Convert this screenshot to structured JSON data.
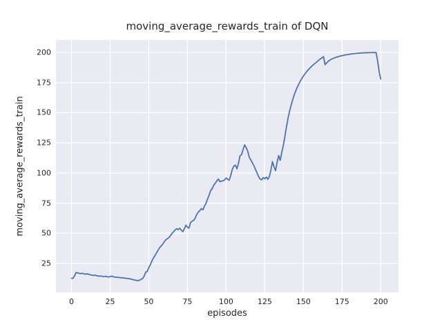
{
  "chart_data": {
    "type": "line",
    "title": "moving_average_rewards_train of DQN",
    "xlabel": "episodes",
    "ylabel": "moving_average_rewards_train",
    "x_ticks": [
      0,
      25,
      50,
      75,
      100,
      125,
      150,
      175,
      200
    ],
    "y_ticks": [
      25,
      50,
      75,
      100,
      125,
      150,
      175,
      200
    ],
    "xlim": [
      -10.05,
      211.5
    ],
    "ylim": [
      1,
      210.3
    ],
    "grid": true,
    "legend": "none",
    "colors": {
      "line": "#4c72b0",
      "plot_background": "#eaeaf2",
      "gridline": "#ffffff",
      "text": "#262626"
    },
    "series": [
      {
        "name": "moving_average_rewards_train",
        "x_start": 0,
        "x_step": 1,
        "values": [
          12.7,
          12.7,
          14.8,
          17.5,
          17.2,
          16.8,
          16.5,
          16.9,
          16.4,
          16.1,
          16.5,
          16.0,
          15.7,
          15.3,
          15.0,
          15.4,
          14.9,
          14.7,
          14.4,
          14.6,
          14.3,
          14.1,
          14.4,
          14.0,
          13.8,
          14.1,
          14.5,
          14.0,
          13.7,
          13.5,
          13.6,
          13.3,
          13.1,
          13.2,
          12.9,
          12.7,
          12.6,
          12.4,
          12.2,
          11.8,
          11.5,
          11.2,
          10.9,
          10.8,
          11.0,
          11.8,
          12.5,
          14.5,
          17.8,
          18.3,
          21.5,
          24.0,
          27.0,
          29.5,
          31.5,
          33.7,
          36.0,
          38.0,
          39.5,
          41.0,
          43.0,
          44.6,
          45.5,
          46.5,
          48.0,
          49.8,
          51.2,
          52.8,
          53.8,
          53.0,
          54.2,
          52.8,
          51.3,
          53.8,
          56.8,
          55.0,
          54.3,
          58.9,
          60.0,
          60.8,
          62.5,
          65.6,
          67.5,
          68.8,
          70.5,
          69.5,
          72.5,
          74.8,
          78.5,
          81.5,
          85.5,
          87.0,
          89.9,
          91.5,
          93.5,
          95.0,
          92.8,
          93.2,
          93.6,
          94.2,
          95.9,
          94.8,
          94.0,
          98.0,
          103.0,
          105.7,
          106.5,
          103.5,
          108.0,
          114.3,
          115.2,
          119.5,
          123.3,
          121.0,
          118.0,
          113.0,
          110.8,
          108.5,
          106.0,
          103.0,
          100.0,
          97.0,
          95.0,
          94.3,
          96.2,
          95.3,
          96.6,
          94.8,
          97.1,
          102.5,
          109.5,
          105.0,
          102.0,
          109.0,
          114.5,
          110.5,
          117.0,
          123.0,
          130.0,
          138.0,
          145.0,
          151.0,
          156.0,
          160.5,
          164.5,
          168.0,
          171.0,
          173.7,
          176.2,
          178.4,
          180.4,
          182.2,
          183.9,
          185.4,
          186.8,
          188.1,
          189.3,
          190.4,
          191.4,
          192.5,
          193.6,
          194.6,
          195.5,
          196.5,
          189.8,
          191.3,
          192.6,
          193.5,
          194.3,
          194.9,
          195.4,
          195.9,
          196.3,
          196.7,
          197.0,
          197.3,
          197.6,
          197.9,
          198.1,
          198.3,
          198.5,
          198.7,
          198.9,
          199.0,
          199.2,
          199.3,
          199.4,
          199.5,
          199.6,
          199.65,
          199.7,
          199.75,
          199.8,
          199.8,
          199.85,
          199.85,
          199.9,
          199.9,
          193.0,
          184.0,
          178.0
        ]
      }
    ]
  }
}
